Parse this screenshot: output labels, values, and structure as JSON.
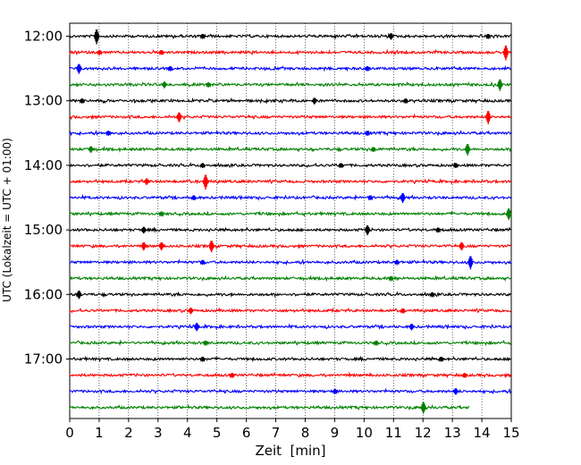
{
  "chart_data": {
    "type": "line",
    "chart_kind": "helicorder",
    "xlabel": "Zeit  [min]",
    "ylabel": "UTC (Lokalzeit = UTC + 01:00)",
    "xlim": [
      0,
      15
    ],
    "x_ticks": [
      0,
      1,
      2,
      3,
      4,
      5,
      6,
      7,
      8,
      9,
      10,
      11,
      12,
      13,
      14,
      15
    ],
    "y_tick_labels": [
      "12:00",
      "13:00",
      "14:00",
      "15:00",
      "16:00",
      "17:00"
    ],
    "grid": "vertical-dotted",
    "trace_colors": [
      "#000000",
      "#ff0000",
      "#0000ff",
      "#008000"
    ],
    "series": [
      {
        "row": 0,
        "end_min": 15,
        "spikes": [
          {
            "t": 0.9,
            "a": 9
          },
          {
            "t": 4.5,
            "a": 3
          },
          {
            "t": 10.9,
            "a": 4
          },
          {
            "t": 14.2,
            "a": 3
          }
        ]
      },
      {
        "row": 1,
        "end_min": 15,
        "spikes": [
          {
            "t": 1.0,
            "a": 3
          },
          {
            "t": 3.1,
            "a": 3
          },
          {
            "t": 14.8,
            "a": 9
          }
        ]
      },
      {
        "row": 2,
        "end_min": 15,
        "spikes": [
          {
            "t": 0.3,
            "a": 6
          },
          {
            "t": 3.4,
            "a": 3
          },
          {
            "t": 10.1,
            "a": 3
          }
        ]
      },
      {
        "row": 3,
        "end_min": 15,
        "spikes": [
          {
            "t": 3.2,
            "a": 4
          },
          {
            "t": 4.7,
            "a": 3
          },
          {
            "t": 14.6,
            "a": 7
          }
        ]
      },
      {
        "row": 4,
        "end_min": 15,
        "spikes": [
          {
            "t": 0.4,
            "a": 3
          },
          {
            "t": 8.3,
            "a": 4
          },
          {
            "t": 11.4,
            "a": 3
          }
        ]
      },
      {
        "row": 5,
        "end_min": 15,
        "spikes": [
          {
            "t": 3.7,
            "a": 6
          },
          {
            "t": 14.2,
            "a": 8
          }
        ]
      },
      {
        "row": 6,
        "end_min": 15,
        "spikes": [
          {
            "t": 1.3,
            "a": 3
          },
          {
            "t": 10.1,
            "a": 3
          }
        ]
      },
      {
        "row": 7,
        "end_min": 15,
        "spikes": [
          {
            "t": 0.7,
            "a": 4
          },
          {
            "t": 10.3,
            "a": 3
          },
          {
            "t": 13.5,
            "a": 7
          }
        ]
      },
      {
        "row": 8,
        "end_min": 15,
        "spikes": [
          {
            "t": 4.5,
            "a": 3
          },
          {
            "t": 9.2,
            "a": 3
          },
          {
            "t": 13.1,
            "a": 3
          }
        ]
      },
      {
        "row": 9,
        "end_min": 15,
        "spikes": [
          {
            "t": 2.6,
            "a": 4
          },
          {
            "t": 4.6,
            "a": 9
          }
        ]
      },
      {
        "row": 10,
        "end_min": 15,
        "spikes": [
          {
            "t": 4.2,
            "a": 3
          },
          {
            "t": 10.2,
            "a": 3
          },
          {
            "t": 11.3,
            "a": 6
          }
        ]
      },
      {
        "row": 11,
        "end_min": 15,
        "spikes": [
          {
            "t": 3.1,
            "a": 3
          },
          {
            "t": 14.9,
            "a": 7
          }
        ]
      },
      {
        "row": 12,
        "end_min": 15,
        "spikes": [
          {
            "t": 2.5,
            "a": 4
          },
          {
            "t": 10.1,
            "a": 6
          },
          {
            "t": 12.5,
            "a": 3
          }
        ]
      },
      {
        "row": 13,
        "end_min": 15,
        "spikes": [
          {
            "t": 2.5,
            "a": 5
          },
          {
            "t": 3.1,
            "a": 5
          },
          {
            "t": 4.8,
            "a": 7
          },
          {
            "t": 13.3,
            "a": 5
          }
        ]
      },
      {
        "row": 14,
        "end_min": 15,
        "spikes": [
          {
            "t": 4.5,
            "a": 3
          },
          {
            "t": 11.1,
            "a": 3
          },
          {
            "t": 13.6,
            "a": 8
          }
        ]
      },
      {
        "row": 15,
        "end_min": 15,
        "spikes": [
          {
            "t": 10.9,
            "a": 3
          }
        ]
      },
      {
        "row": 16,
        "end_min": 15,
        "spikes": [
          {
            "t": 0.3,
            "a": 5
          },
          {
            "t": 12.3,
            "a": 3
          }
        ]
      },
      {
        "row": 17,
        "end_min": 15,
        "spikes": [
          {
            "t": 4.1,
            "a": 4
          },
          {
            "t": 11.3,
            "a": 3
          }
        ]
      },
      {
        "row": 18,
        "end_min": 15,
        "spikes": [
          {
            "t": 4.3,
            "a": 5
          },
          {
            "t": 11.6,
            "a": 4
          }
        ]
      },
      {
        "row": 19,
        "end_min": 15,
        "spikes": [
          {
            "t": 4.6,
            "a": 3
          },
          {
            "t": 10.4,
            "a": 3
          }
        ]
      },
      {
        "row": 20,
        "end_min": 15,
        "spikes": [
          {
            "t": 4.5,
            "a": 3
          },
          {
            "t": 12.6,
            "a": 3
          }
        ]
      },
      {
        "row": 21,
        "end_min": 15,
        "spikes": [
          {
            "t": 5.5,
            "a": 3
          },
          {
            "t": 13.4,
            "a": 3
          }
        ]
      },
      {
        "row": 22,
        "end_min": 15,
        "spikes": [
          {
            "t": 9.0,
            "a": 3
          },
          {
            "t": 13.1,
            "a": 4
          }
        ]
      },
      {
        "row": 23,
        "end_min": 13.6,
        "spikes": [
          {
            "t": 12.0,
            "a": 7
          }
        ]
      }
    ]
  }
}
